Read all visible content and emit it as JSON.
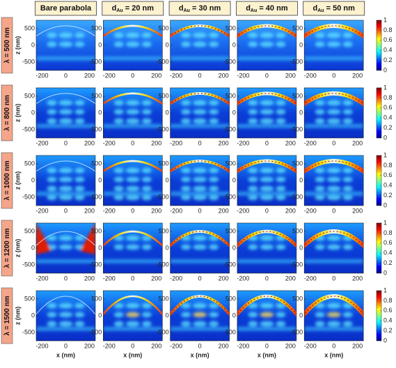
{
  "header": {
    "columns": [
      {
        "text": "Bare parabola"
      },
      {
        "symbol": "d",
        "subscript": "Au",
        "text": " = 20 nm"
      },
      {
        "symbol": "d",
        "subscript": "Au",
        "text": " = 30 nm"
      },
      {
        "symbol": "d",
        "subscript": "Au",
        "text": " = 40 nm"
      },
      {
        "symbol": "d",
        "subscript": "Au",
        "text": " = 50 nm"
      }
    ]
  },
  "rows": [
    "λ = 500 nm",
    "λ = 800 nm",
    "λ = 1000 nm",
    "λ = 1200 nm",
    "λ = 1500 nm"
  ],
  "axes": {
    "x_label": "x (nm)",
    "z_label": "z (nm)",
    "xlim": [
      -250,
      250
    ],
    "xticks": [
      -200,
      0,
      200
    ],
    "zlim": [
      -750,
      750
    ],
    "zticks": [
      -500,
      0,
      500
    ]
  },
  "colorbar": {
    "lim": [
      0,
      1
    ],
    "ticks": [
      0,
      0.2,
      0.4,
      0.6,
      0.8,
      1
    ]
  }
}
